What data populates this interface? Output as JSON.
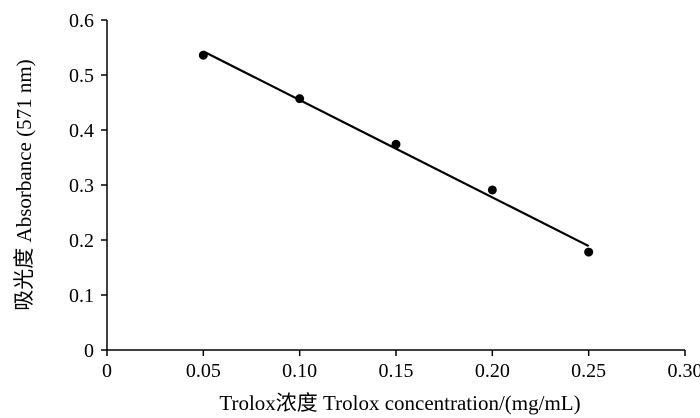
{
  "chart_data": {
    "type": "scatter",
    "xlabel": "Trolox浓度  Trolox concentration/(mg/mL)",
    "ylabel": "吸光度  Absorbance (571 nm)",
    "xlim": [
      0,
      0.3
    ],
    "ylim": [
      0,
      0.6
    ],
    "x_ticks": [
      "0",
      "0.05",
      "0.10",
      "0.15",
      "0.20",
      "0.25",
      "0.30"
    ],
    "x_tick_values": [
      0,
      0.05,
      0.1,
      0.15,
      0.2,
      0.25,
      0.3
    ],
    "y_ticks": [
      "0",
      "0.1",
      "0.2",
      "0.3",
      "0.4",
      "0.5",
      "0.6"
    ],
    "y_tick_values": [
      0,
      0.1,
      0.2,
      0.3,
      0.4,
      0.5,
      0.6
    ],
    "grid": false,
    "series": [
      {
        "points": [
          {
            "x": 0.05,
            "y": 0.536
          },
          {
            "x": 0.1,
            "y": 0.457
          },
          {
            "x": 0.15,
            "y": 0.374
          },
          {
            "x": 0.2,
            "y": 0.291
          },
          {
            "x": 0.25,
            "y": 0.178
          }
        ],
        "marker_color": "#000000"
      }
    ],
    "trendline": {
      "x_start": 0.05,
      "y_start": 0.543,
      "x_end": 0.25,
      "y_end": 0.189,
      "color": "#000000"
    }
  }
}
